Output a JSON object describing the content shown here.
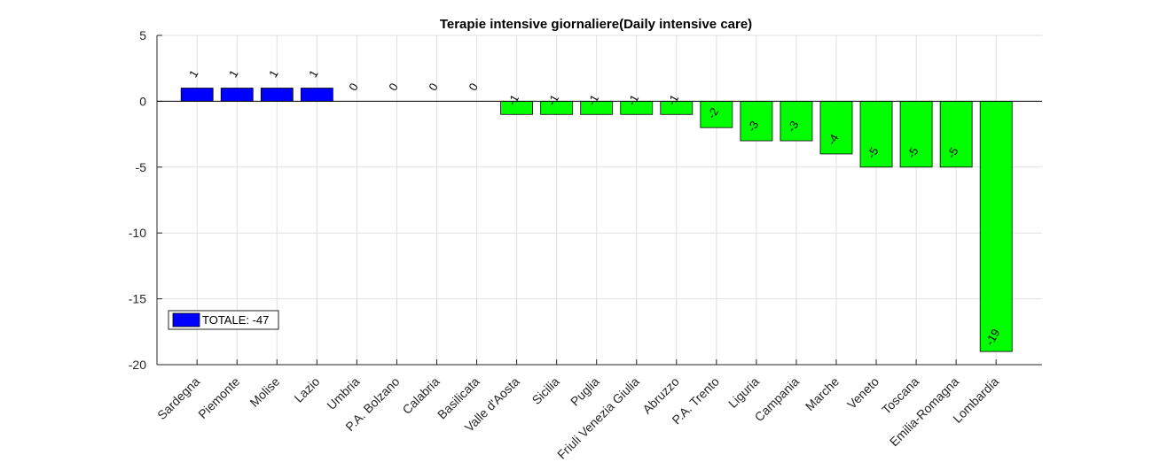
{
  "chart_data": {
    "type": "bar",
    "title": "Terapie intensive giornaliere(Daily intensive care)",
    "xlabel": "",
    "ylabel": "",
    "ylim": [
      -20,
      5
    ],
    "yticks": [
      5,
      0,
      -5,
      -10,
      -15,
      -20
    ],
    "grid": true,
    "categories": [
      "Sardegna",
      "Piemonte",
      "Molise",
      "Lazio",
      "Umbria",
      "P.A. Bolzano",
      "Calabria",
      "Basilicata",
      "Valle d'Aosta",
      "Sicilia",
      "Puglia",
      "Friuli Venezia Giulia",
      "Abruzzo",
      "P.A. Trento",
      "Liguria",
      "Campania",
      "Marche",
      "Veneto",
      "Toscana",
      "Emilia-Romagna",
      "Lombardia"
    ],
    "values": [
      1,
      1,
      1,
      1,
      0,
      0,
      0,
      0,
      -1,
      -1,
      -1,
      -1,
      -1,
      -2,
      -3,
      -3,
      -4,
      -5,
      -5,
      -5,
      -19
    ],
    "colors": {
      "positive": "#0000ff",
      "negative": "#00ff00"
    },
    "legend": {
      "label": "TOTALE: -47",
      "placement": "bottom-left",
      "color": "#0000ff"
    }
  }
}
